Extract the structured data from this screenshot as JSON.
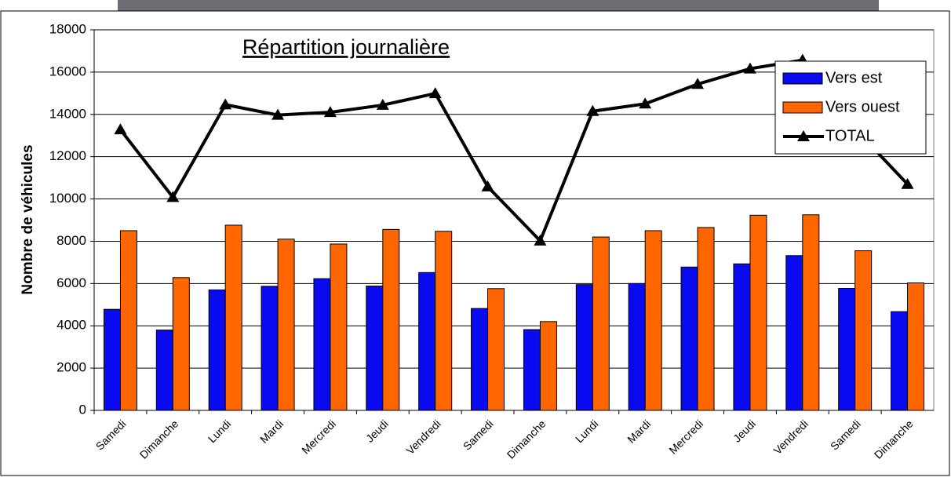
{
  "chart_data": {
    "type": "bar",
    "title": "Répartition journalière",
    "y_label": "Nombre de véhicules",
    "categories": [
      "Samedi",
      "Dimanche",
      "Lundi",
      "Mardi",
      "Mercredi",
      "Jeudi",
      "Vendredi",
      "Samedi",
      "Dimanche",
      "Lundi",
      "Mardi",
      "Mercredi",
      "Jeudi",
      "Vendredi",
      "Samedi",
      "Dimanche"
    ],
    "series": [
      {
        "name": "Vers est",
        "type": "bar",
        "color": "#0a0af0",
        "values": [
          4780,
          3800,
          5700,
          5870,
          6230,
          5880,
          6520,
          4820,
          3820,
          5950,
          6000,
          6780,
          6930,
          7320,
          5770,
          4670
        ]
      },
      {
        "name": "Vers ouest",
        "type": "bar",
        "color": "#ff6600",
        "values": [
          8500,
          6280,
          8760,
          8100,
          7870,
          8560,
          8470,
          5760,
          4200,
          8200,
          8500,
          8650,
          9230,
          9250,
          7550,
          6030
        ]
      },
      {
        "name": "TOTAL",
        "type": "line",
        "color": "#000000",
        "values": [
          13280,
          10080,
          14460,
          13970,
          14100,
          14440,
          14990,
          10580,
          8020,
          14150,
          14500,
          15430,
          16160,
          16570,
          13320,
          10700
        ]
      }
    ],
    "ylim": [
      0,
      18000
    ],
    "yticks": [
      0,
      2000,
      4000,
      6000,
      8000,
      10000,
      12000,
      14000,
      16000,
      18000
    ],
    "grid": true,
    "legend": "top-right"
  }
}
